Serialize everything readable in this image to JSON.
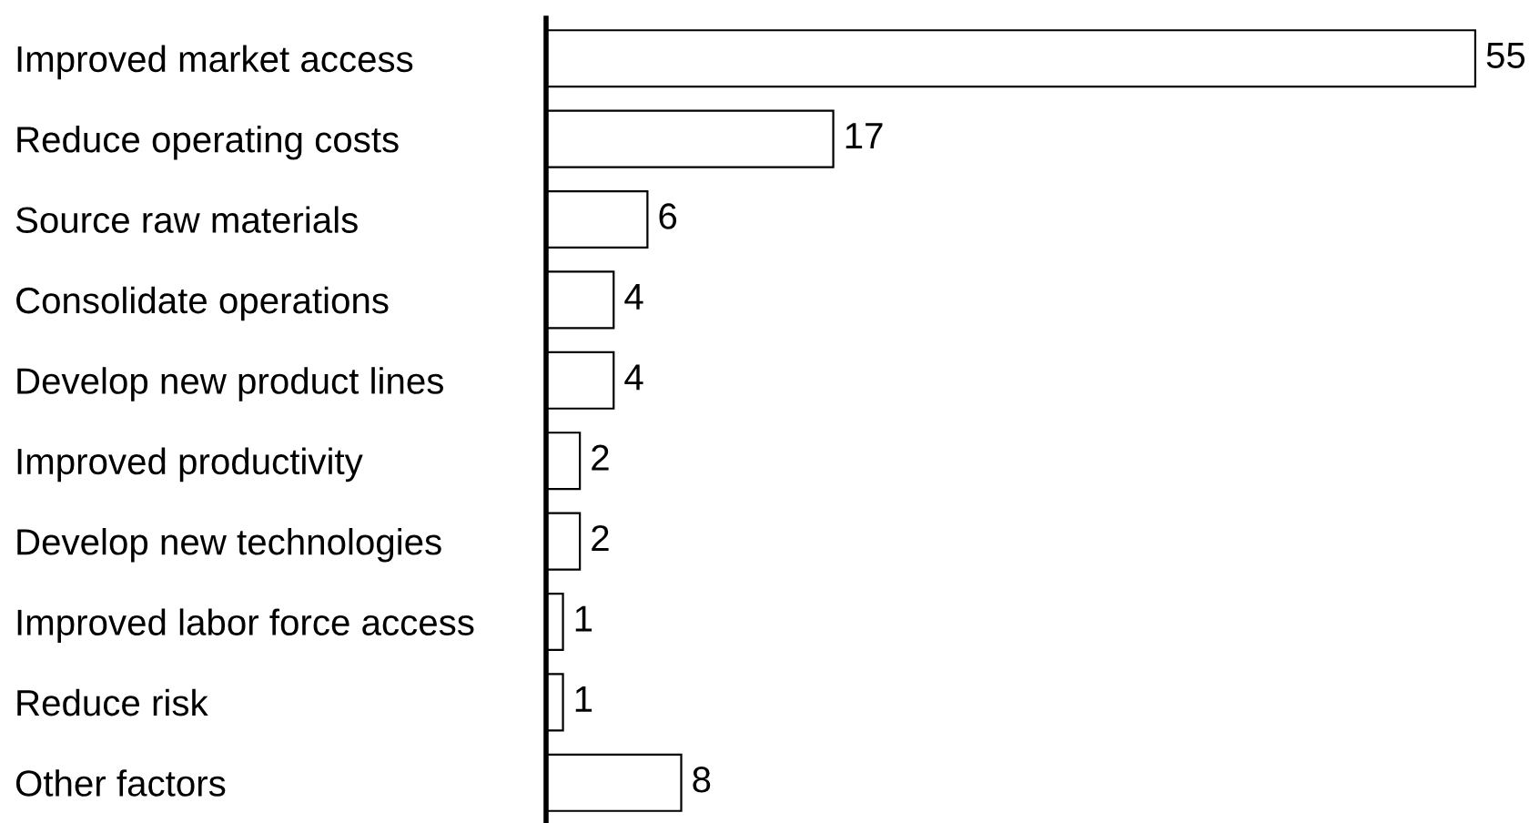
{
  "chart_data": {
    "type": "bar",
    "orientation": "horizontal",
    "categories": [
      "Improved market access",
      "Reduce operating costs",
      "Source raw materials",
      "Consolidate operations",
      "Develop new product lines",
      "Improved productivity",
      "Develop new technologies",
      "Improved labor force access",
      "Reduce risk",
      "Other factors"
    ],
    "values": [
      55,
      17,
      6,
      4,
      4,
      2,
      2,
      1,
      1,
      8
    ],
    "color": "#ffffff",
    "data_labels": true,
    "grid": false,
    "legend": false,
    "tick_labels": "y"
  }
}
